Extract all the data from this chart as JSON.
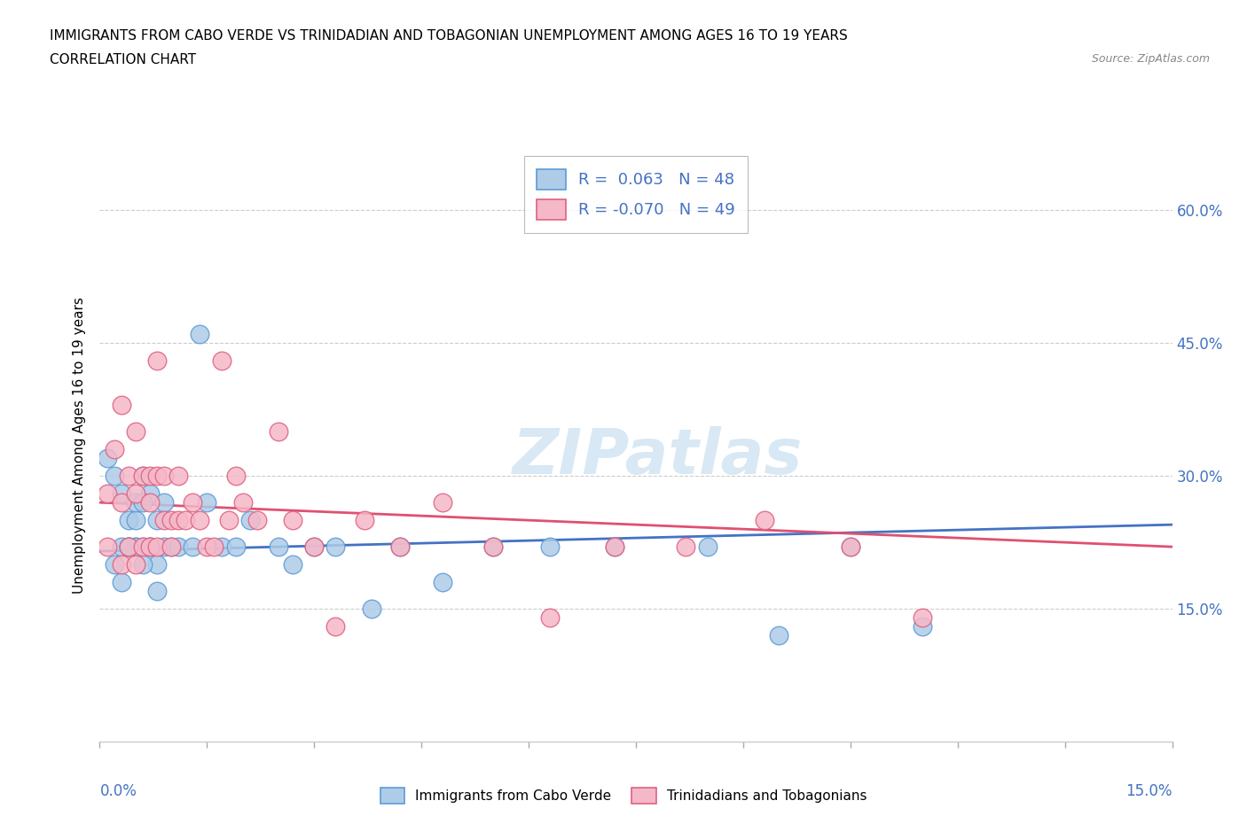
{
  "title": "IMMIGRANTS FROM CABO VERDE VS TRINIDADIAN AND TOBAGONIAN UNEMPLOYMENT AMONG AGES 16 TO 19 YEARS",
  "subtitle": "CORRELATION CHART",
  "source": "Source: ZipAtlas.com",
  "ylabel": "Unemployment Among Ages 16 to 19 years",
  "ytick_labels": [
    "15.0%",
    "30.0%",
    "45.0%",
    "60.0%"
  ],
  "ytick_values": [
    0.15,
    0.3,
    0.45,
    0.6
  ],
  "xmin": 0.0,
  "xmax": 0.15,
  "ymin": 0.0,
  "ymax": 0.67,
  "cabo_verde_R": 0.063,
  "cabo_verde_N": 48,
  "trinidad_R": -0.07,
  "trinidad_N": 49,
  "cabo_verde_color": "#aecce8",
  "trinidad_color": "#f5b8c8",
  "cabo_verde_edge_color": "#5b9bd5",
  "trinidad_edge_color": "#e06080",
  "cabo_verde_line_color": "#4472c4",
  "trinidad_line_color": "#e05070",
  "text_blue": "#4472c4",
  "watermark_color": "#c8dff0",
  "cabo_verde_x": [
    0.005,
    0.008,
    0.003,
    0.004,
    0.006,
    0.002,
    0.005,
    0.007,
    0.001,
    0.003,
    0.006,
    0.004,
    0.003,
    0.005,
    0.002,
    0.007,
    0.004,
    0.006,
    0.008,
    0.005,
    0.007,
    0.009,
    0.006,
    0.008,
    0.004,
    0.01,
    0.009,
    0.011,
    0.013,
    0.014,
    0.015,
    0.017,
    0.019,
    0.021,
    0.025,
    0.027,
    0.03,
    0.033,
    0.038,
    0.042,
    0.048,
    0.055,
    0.063,
    0.072,
    0.085,
    0.095,
    0.105,
    0.115
  ],
  "cabo_verde_y": [
    0.22,
    0.2,
    0.18,
    0.25,
    0.22,
    0.2,
    0.25,
    0.22,
    0.32,
    0.28,
    0.3,
    0.22,
    0.22,
    0.27,
    0.3,
    0.28,
    0.22,
    0.2,
    0.17,
    0.22,
    0.22,
    0.22,
    0.27,
    0.25,
    0.22,
    0.22,
    0.27,
    0.22,
    0.22,
    0.46,
    0.27,
    0.22,
    0.22,
    0.25,
    0.22,
    0.2,
    0.22,
    0.22,
    0.15,
    0.22,
    0.18,
    0.22,
    0.22,
    0.22,
    0.22,
    0.12,
    0.22,
    0.13
  ],
  "trinidad_x": [
    0.001,
    0.002,
    0.003,
    0.003,
    0.004,
    0.005,
    0.004,
    0.005,
    0.006,
    0.006,
    0.007,
    0.007,
    0.008,
    0.008,
    0.008,
    0.009,
    0.009,
    0.01,
    0.01,
    0.011,
    0.011,
    0.012,
    0.013,
    0.014,
    0.015,
    0.016,
    0.017,
    0.018,
    0.019,
    0.02,
    0.022,
    0.025,
    0.027,
    0.03,
    0.033,
    0.037,
    0.042,
    0.048,
    0.055,
    0.063,
    0.072,
    0.082,
    0.093,
    0.105,
    0.115,
    0.001,
    0.003,
    0.005,
    0.007
  ],
  "trinidad_y": [
    0.28,
    0.33,
    0.38,
    0.27,
    0.3,
    0.35,
    0.22,
    0.28,
    0.3,
    0.22,
    0.3,
    0.22,
    0.3,
    0.22,
    0.43,
    0.25,
    0.3,
    0.25,
    0.22,
    0.25,
    0.3,
    0.25,
    0.27,
    0.25,
    0.22,
    0.22,
    0.43,
    0.25,
    0.3,
    0.27,
    0.25,
    0.35,
    0.25,
    0.22,
    0.13,
    0.25,
    0.22,
    0.27,
    0.22,
    0.14,
    0.22,
    0.22,
    0.25,
    0.22,
    0.14,
    0.22,
    0.2,
    0.2,
    0.27
  ]
}
